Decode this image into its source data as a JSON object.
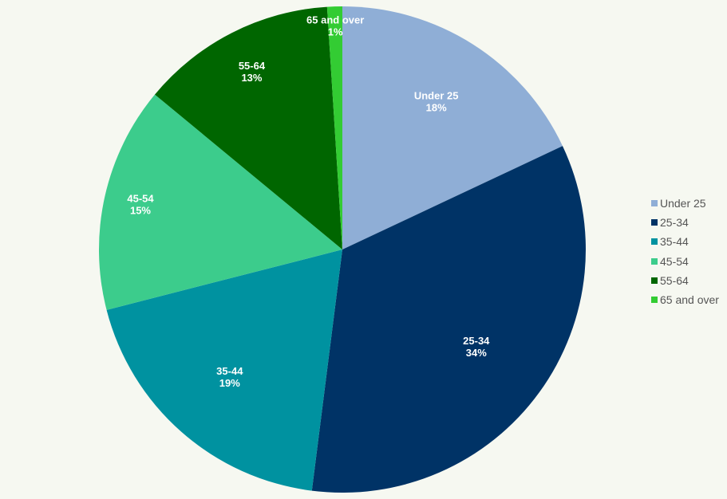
{
  "chart_data": {
    "type": "pie",
    "title": "",
    "categories": [
      "Under 25",
      "25-34",
      "35-44",
      "45-54",
      "55-64",
      "65 and over"
    ],
    "values": [
      18,
      34,
      19,
      15,
      13,
      1
    ],
    "value_labels": [
      "18%",
      "34%",
      "19%",
      "15%",
      "13%",
      "1%"
    ],
    "colors": [
      "#8faed6",
      "#003366",
      "#0092a0",
      "#3ccc8c",
      "#006600",
      "#33cc33"
    ],
    "start_angle": "12 o'clock, clockwise",
    "legend_position": "right"
  },
  "legend": {
    "items": [
      {
        "label": "Under 25",
        "color": "#8faed6"
      },
      {
        "label": "25-34",
        "color": "#003366"
      },
      {
        "label": "35-44",
        "color": "#0092a0"
      },
      {
        "label": "45-54",
        "color": "#3ccc8c"
      },
      {
        "label": "55-64",
        "color": "#006600"
      },
      {
        "label": "65 and over",
        "color": "#33cc33"
      }
    ]
  },
  "slice_labels": [
    {
      "name": "Under 25",
      "pct": "18%"
    },
    {
      "name": "25-34",
      "pct": "34%"
    },
    {
      "name": "35-44",
      "pct": "19%"
    },
    {
      "name": "45-54",
      "pct": "15%"
    },
    {
      "name": "55-64",
      "pct": "13%"
    },
    {
      "name": "65 and over",
      "pct": "1%"
    }
  ]
}
